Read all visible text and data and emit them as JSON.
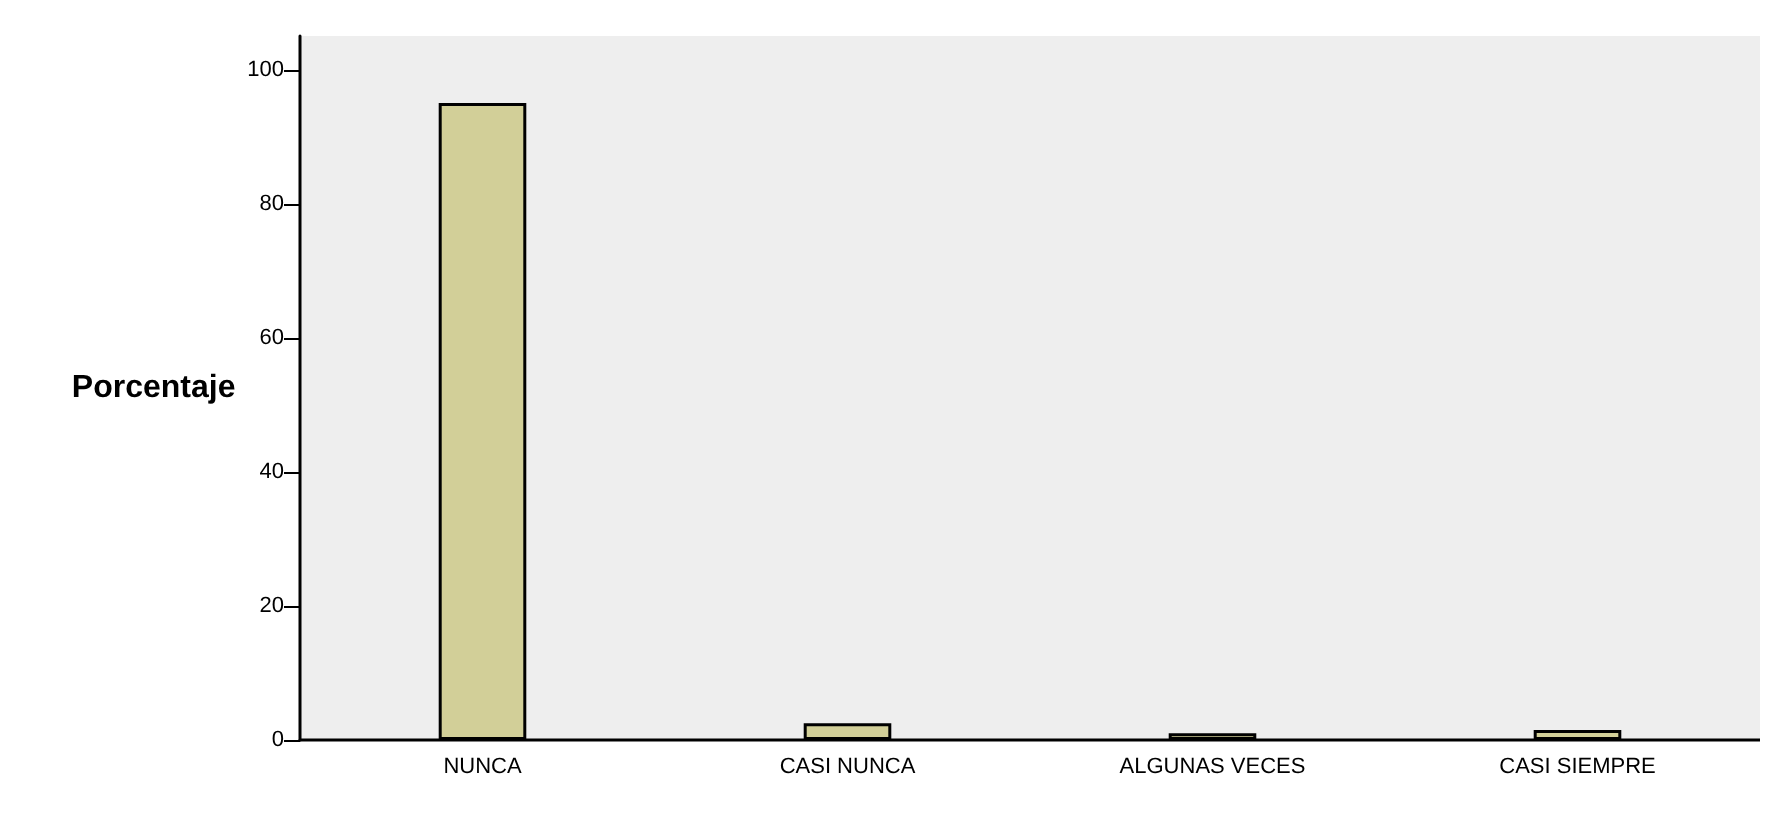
{
  "chart_data": {
    "type": "bar",
    "ylabel": "Porcentaje",
    "categories": [
      "NUNCA",
      "CASI NUNCA",
      "ALGUNAS VECES",
      "CASI SIEMPRE"
    ],
    "values": [
      95,
      2.5,
      1,
      1.5
    ],
    "color": "#d2cf98",
    "ylim": [
      0,
      105
    ],
    "yticks": [
      0,
      20,
      40,
      60,
      80,
      100
    ],
    "grid": false
  }
}
